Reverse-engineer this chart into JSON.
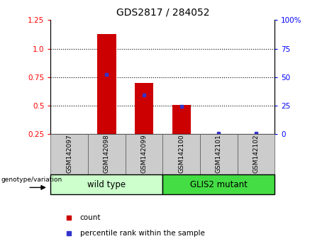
{
  "title": "GDS2817 / 284052",
  "categories": [
    "GSM142097",
    "GSM142098",
    "GSM142099",
    "GSM142100",
    "GSM142101",
    "GSM142102"
  ],
  "red_bars": [
    0.0,
    1.13,
    0.7,
    0.51,
    0.0,
    0.0
  ],
  "blue_dots_left": [
    null,
    0.775,
    0.595,
    0.495,
    0.26,
    0.26
  ],
  "ylim_left": [
    0.25,
    1.25
  ],
  "ylim_right": [
    0,
    100
  ],
  "yticks_left": [
    0.25,
    0.5,
    0.75,
    1.0,
    1.25
  ],
  "yticks_right": [
    0,
    25,
    50,
    75,
    100
  ],
  "hlines": [
    0.5,
    0.75,
    1.0
  ],
  "group1_label": "wild type",
  "group2_label": "GLIS2 mutant",
  "legend_count": "count",
  "legend_percentile": "percentile rank within the sample",
  "bar_color": "#cc0000",
  "dot_color": "#3333cc",
  "group1_bg": "#ccffcc",
  "group2_bg": "#44dd44",
  "label_bg": "#cccccc",
  "bar_width": 0.5,
  "genotype_label": "genotype/variation"
}
